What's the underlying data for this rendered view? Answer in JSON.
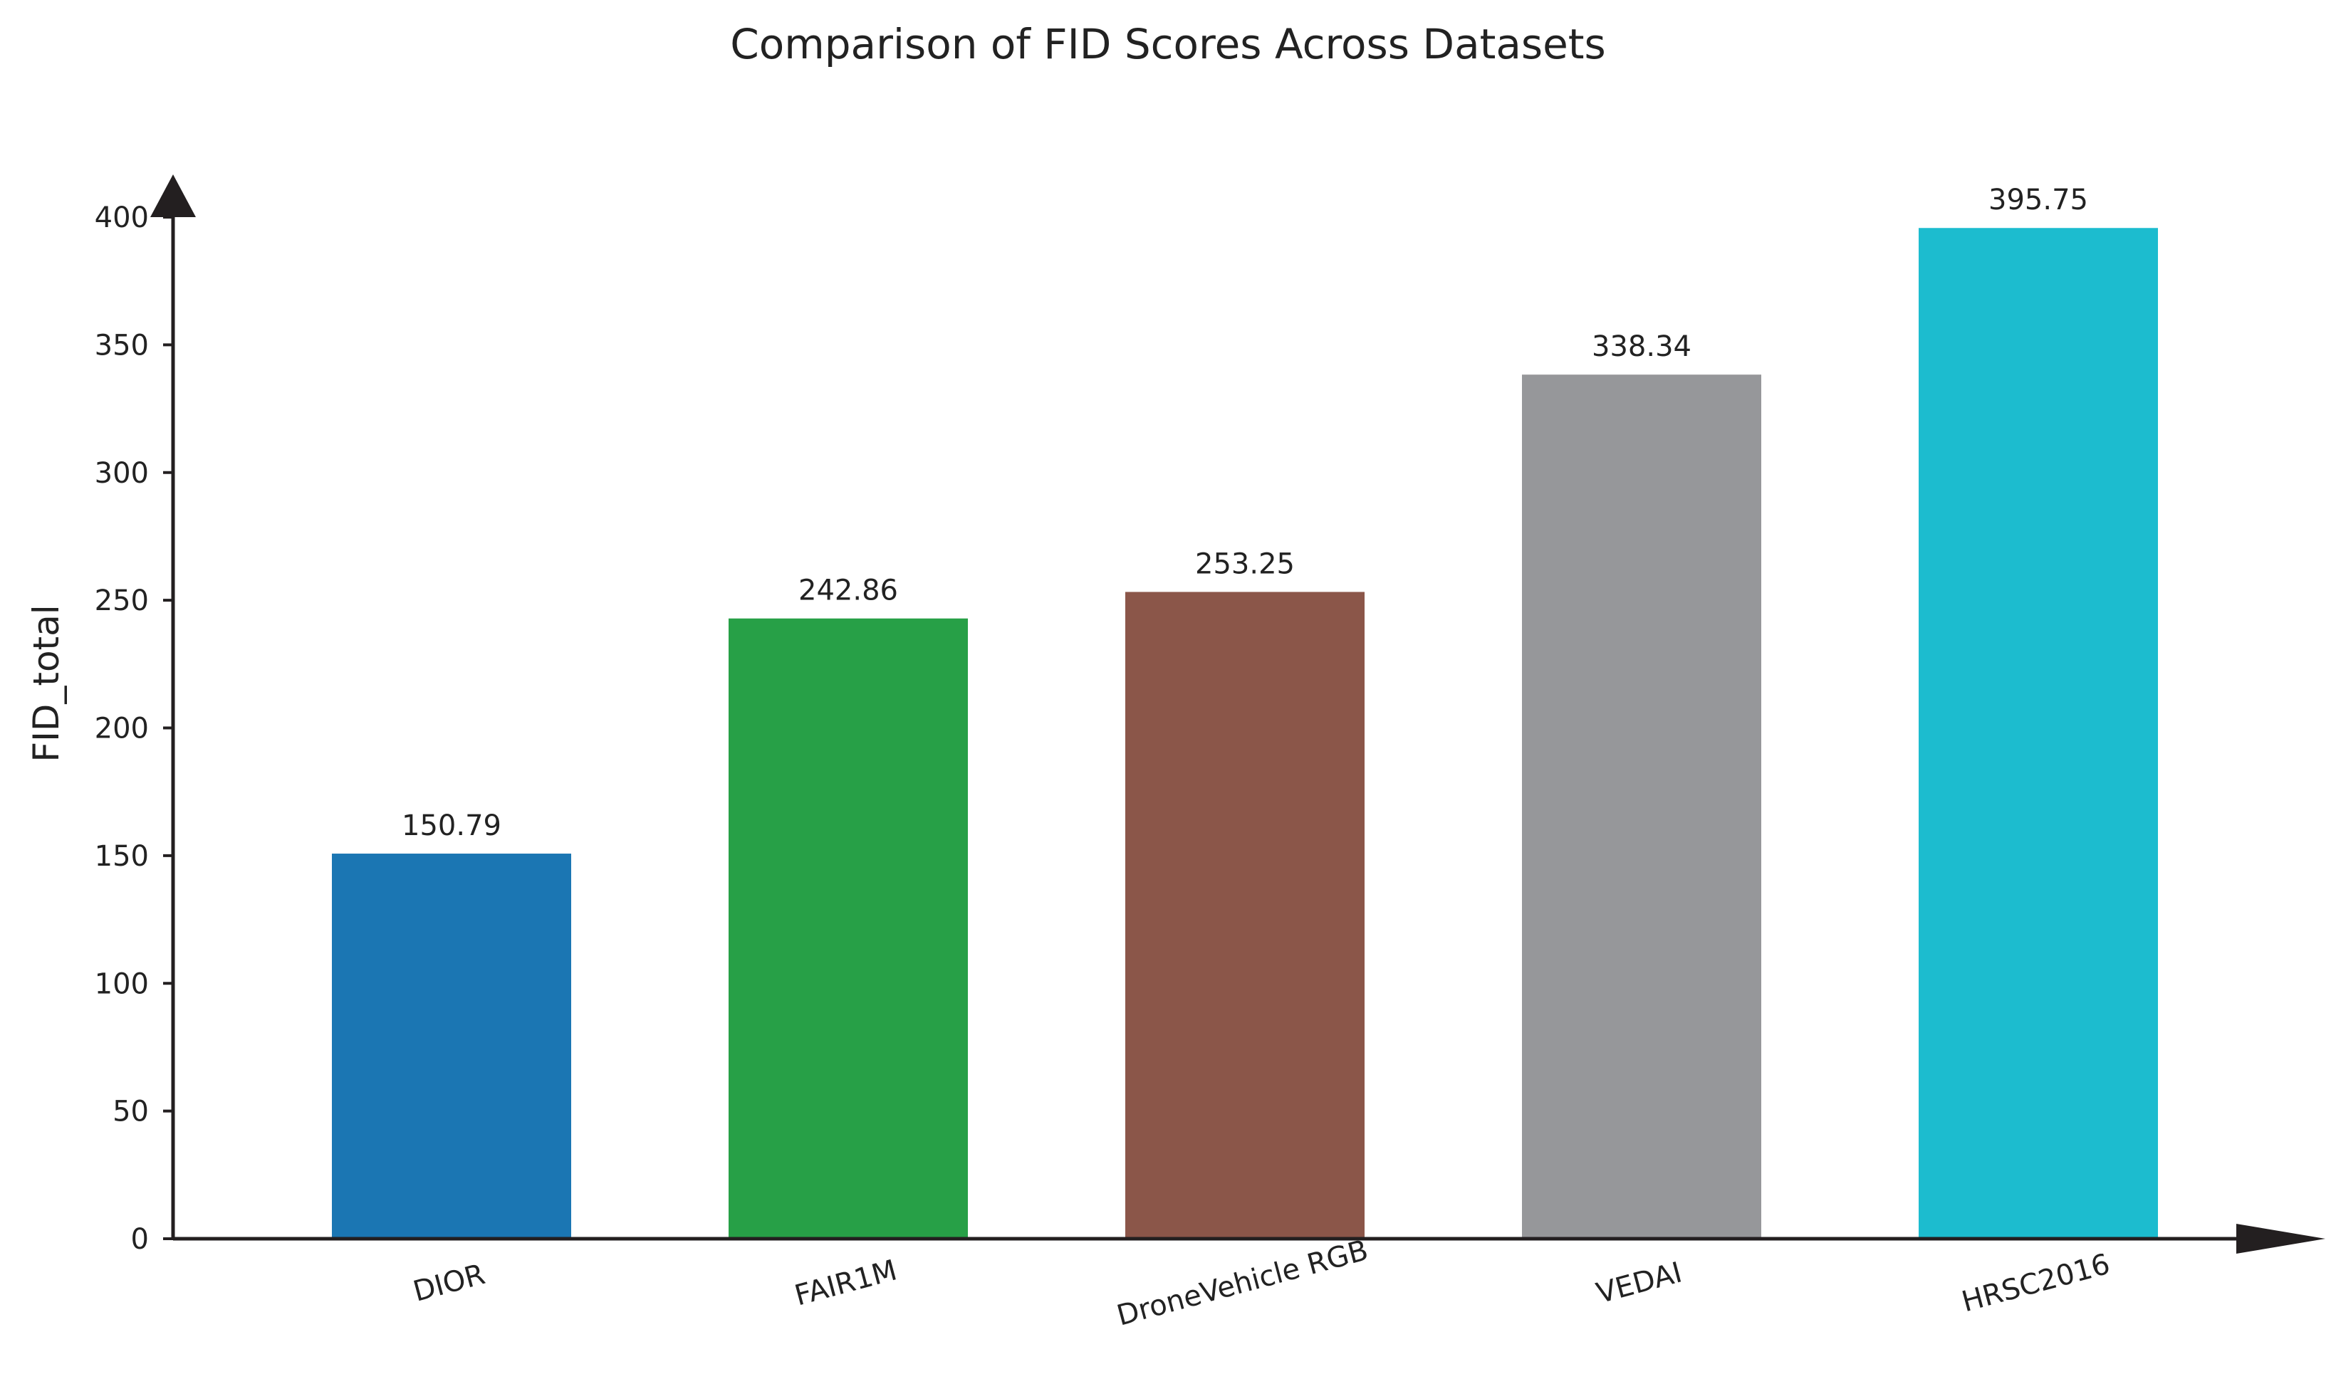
{
  "chart_data": {
    "type": "bar",
    "title": "Comparison of FID Scores Across Datasets",
    "xlabel": "",
    "ylabel": "FID_total",
    "categories": [
      "DIOR",
      "FAIR1M",
      "DroneVehicle RGB",
      "VEDAI",
      "HRSC2016"
    ],
    "values": [
      150.79,
      242.86,
      253.25,
      338.34,
      395.75
    ],
    "value_labels": [
      "150.79",
      "242.86",
      "253.25",
      "338.34",
      "395.75"
    ],
    "colors": [
      "#1b76b3",
      "#27a047",
      "#8b5649",
      "#96979a",
      "#1cbccf"
    ],
    "ylim": [
      0,
      400
    ],
    "yticks": [
      0,
      50,
      100,
      150,
      200,
      250,
      300,
      350,
      400
    ],
    "ytick_labels": [
      "0",
      "50",
      "100",
      "150",
      "200",
      "250",
      "300",
      "350",
      "400"
    ],
    "grid": false,
    "legend": "none"
  }
}
